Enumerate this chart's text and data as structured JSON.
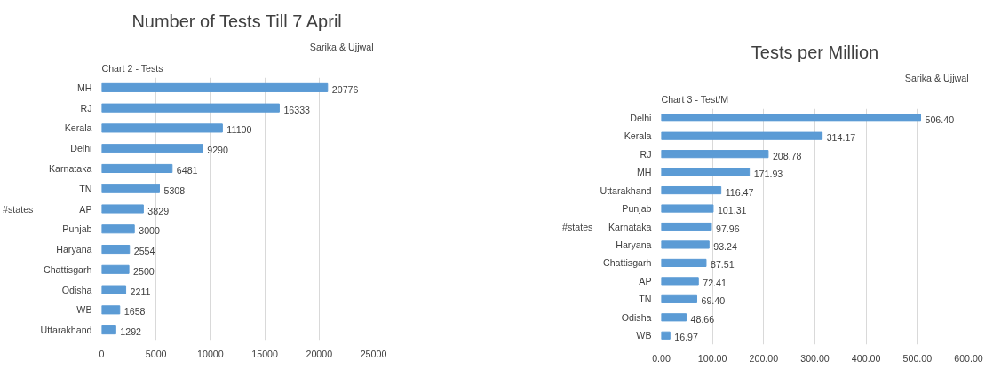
{
  "chart_data": [
    {
      "type": "bar",
      "orientation": "horizontal",
      "title": "Number of Tests Till 7 April",
      "ylabel": "#states",
      "annotations": [
        "Chart 2 - Tests",
        "Sarika & Ujjwal"
      ],
      "categories": [
        "MH",
        "RJ",
        "Kerala",
        "Delhi",
        "Karnataka",
        "TN",
        "AP",
        "Punjab",
        "Haryana",
        "Chattisgarh",
        "Odisha",
        "WB",
        "Uttarakhand"
      ],
      "values": [
        20776,
        16333,
        11100,
        9290,
        6481,
        5308,
        3829,
        3000,
        2554,
        2500,
        2211,
        1658,
        1292
      ],
      "color": "#5b9bd5",
      "xlim": [
        0,
        25000
      ],
      "xticks": [
        0,
        5000,
        10000,
        15000,
        20000,
        25000
      ],
      "grid": "x",
      "data_labels": true
    },
    {
      "type": "bar",
      "orientation": "horizontal",
      "title": "Tests per Million",
      "ylabel": "#states",
      "annotations": [
        "Chart 3 - Test/M",
        "Sarika & Ujjwal"
      ],
      "categories": [
        "Delhi",
        "Kerala",
        "RJ",
        "MH",
        "Uttarakhand",
        "Punjab",
        "Karnataka",
        "Haryana",
        "Chattisgarh",
        "AP",
        "TN",
        "Odisha",
        "WB"
      ],
      "values": [
        506.4,
        314.17,
        208.78,
        171.93,
        116.47,
        101.31,
        97.96,
        93.24,
        87.51,
        72.41,
        69.4,
        48.66,
        16.97
      ],
      "value_labels": [
        "506.40",
        "314.17",
        "208.78",
        "171.93",
        "116.47",
        "101.31",
        "97.96",
        "93.24",
        "87.51",
        "72.41",
        "69.40",
        "48.66",
        "16.97"
      ],
      "color": "#5b9bd5",
      "xlim": [
        0,
        600
      ],
      "xticks": [
        {
          "value": 0,
          "label": "0.00"
        },
        {
          "value": 100,
          "label": "100.00"
        },
        {
          "value": 200,
          "label": "200.00"
        },
        {
          "value": 300,
          "label": "300.00"
        },
        {
          "value": 400,
          "label": "400.00"
        },
        {
          "value": 500,
          "label": "500.00"
        },
        {
          "value": 600,
          "label": "600.00"
        }
      ],
      "grid": "x"
    }
  ]
}
